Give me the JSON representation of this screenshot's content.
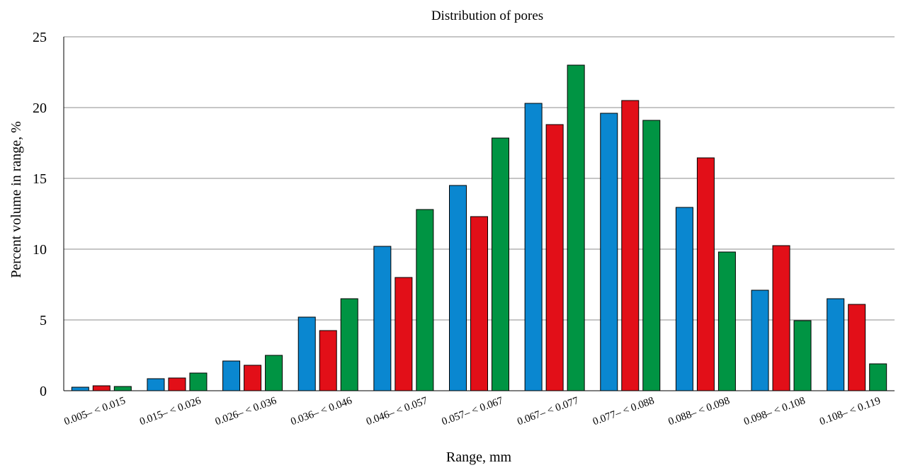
{
  "chart_data": {
    "type": "bar",
    "title": "Distribution of pores",
    "xlabel": "Range, mm",
    "ylabel": "Percent volume in range, %",
    "ylim": [
      0,
      25
    ],
    "yticks": [
      "0",
      "5",
      "10",
      "15",
      "20",
      "25"
    ],
    "grid": true,
    "legend": "none",
    "categories": [
      "0.005– < 0.015",
      "0.015– < 0.026",
      "0.026– < 0.036",
      "0.036– < 0.046",
      "0.046– < 0.057",
      "0.057– < 0.067",
      "0.067– < 0.077",
      "0.077– < 0.088",
      "0.088– < 0.098",
      "0.098– < 0.108",
      "0.108– < 0.119"
    ],
    "series": [
      {
        "color": "#0a87d0",
        "values": [
          0.25,
          0.85,
          2.1,
          5.2,
          10.2,
          14.5,
          20.3,
          19.6,
          12.95,
          7.1,
          6.5
        ]
      },
      {
        "color": "#e20f18",
        "values": [
          0.35,
          0.9,
          1.8,
          4.25,
          8.0,
          12.3,
          18.8,
          20.5,
          16.45,
          10.25,
          6.1
        ]
      },
      {
        "color": "#009443",
        "values": [
          0.3,
          1.25,
          2.5,
          6.5,
          12.8,
          17.85,
          23.0,
          19.1,
          9.8,
          4.95,
          1.9
        ]
      }
    ]
  }
}
